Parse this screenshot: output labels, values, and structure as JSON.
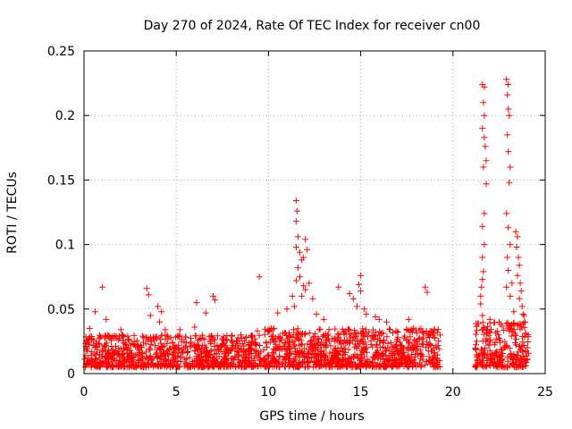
{
  "chart_data": {
    "type": "scatter",
    "title": "Day 270 of 2024, Rate Of TEC Index for receiver cn00",
    "xlabel": "GPS time / hours",
    "ylabel": "ROTI / TECUs",
    "xlim": [
      0,
      25
    ],
    "ylim": [
      0,
      0.25
    ],
    "x_ticks": [
      0,
      5,
      10,
      15,
      20,
      25
    ],
    "x_tick_labels": [
      "0",
      "5",
      "10",
      "15",
      "20",
      "25"
    ],
    "y_ticks": [
      0,
      0.05,
      0.1,
      0.15,
      0.2,
      0.25
    ],
    "y_tick_labels": [
      "0",
      "0.05",
      "0.1",
      "0.15",
      "0.2",
      "0.25"
    ],
    "grid": true,
    "marker": "+",
    "series": [
      {
        "name": "ROTI",
        "color": "#ff0000",
        "baseline_segments": [
          {
            "x_start": 0.0,
            "x_end": 9.6,
            "y_low": 0.005,
            "y_high": 0.03
          },
          {
            "x_start": 9.7,
            "x_end": 19.3,
            "y_low": 0.005,
            "y_high": 0.035
          },
          {
            "x_start": 21.2,
            "x_end": 24.1,
            "y_low": 0.005,
            "y_high": 0.04
          }
        ],
        "points": [
          [
            1.0,
            0.067
          ],
          [
            0.6,
            0.048
          ],
          [
            1.2,
            0.042
          ],
          [
            0.3,
            0.035
          ],
          [
            2.0,
            0.034
          ],
          [
            3.4,
            0.066
          ],
          [
            3.5,
            0.061
          ],
          [
            3.6,
            0.045
          ],
          [
            4.0,
            0.052
          ],
          [
            4.2,
            0.048
          ],
          [
            4.1,
            0.04
          ],
          [
            4.4,
            0.034
          ],
          [
            5.2,
            0.034
          ],
          [
            6.0,
            0.036
          ],
          [
            6.1,
            0.055
          ],
          [
            6.6,
            0.047
          ],
          [
            7.0,
            0.06
          ],
          [
            7.1,
            0.057
          ],
          [
            8.5,
            0.03
          ],
          [
            9.5,
            0.075
          ],
          [
            9.4,
            0.033
          ],
          [
            10.3,
            0.035
          ],
          [
            10.5,
            0.047
          ],
          [
            11.0,
            0.05
          ],
          [
            11.5,
            0.134
          ],
          [
            11.55,
            0.126
          ],
          [
            11.5,
            0.118
          ],
          [
            11.6,
            0.106
          ],
          [
            11.5,
            0.098
          ],
          [
            11.7,
            0.094
          ],
          [
            11.8,
            0.088
          ],
          [
            11.6,
            0.082
          ],
          [
            11.9,
            0.09
          ],
          [
            12.0,
            0.104
          ],
          [
            12.1,
            0.096
          ],
          [
            11.7,
            0.075
          ],
          [
            11.5,
            0.072
          ],
          [
            11.9,
            0.068
          ],
          [
            12.2,
            0.07
          ],
          [
            12.0,
            0.065
          ],
          [
            11.8,
            0.06
          ],
          [
            12.4,
            0.058
          ],
          [
            11.3,
            0.06
          ],
          [
            11.4,
            0.052
          ],
          [
            12.6,
            0.046
          ],
          [
            13.0,
            0.042
          ],
          [
            13.8,
            0.067
          ],
          [
            14.4,
            0.062
          ],
          [
            14.6,
            0.058
          ],
          [
            15.0,
            0.076
          ],
          [
            14.9,
            0.069
          ],
          [
            15.0,
            0.064
          ],
          [
            14.8,
            0.052
          ],
          [
            15.2,
            0.05
          ],
          [
            15.3,
            0.046
          ],
          [
            15.8,
            0.044
          ],
          [
            16.0,
            0.042
          ],
          [
            16.4,
            0.04
          ],
          [
            18.5,
            0.067
          ],
          [
            18.6,
            0.063
          ],
          [
            17.6,
            0.042
          ],
          [
            21.6,
            0.224
          ],
          [
            21.7,
            0.222
          ],
          [
            21.65,
            0.21
          ],
          [
            21.7,
            0.2
          ],
          [
            21.6,
            0.19
          ],
          [
            21.7,
            0.183
          ],
          [
            21.75,
            0.176
          ],
          [
            21.8,
            0.165
          ],
          [
            21.65,
            0.16
          ],
          [
            21.8,
            0.147
          ],
          [
            21.7,
            0.124
          ],
          [
            21.6,
            0.114
          ],
          [
            21.7,
            0.1
          ],
          [
            21.6,
            0.09
          ],
          [
            21.65,
            0.079
          ],
          [
            21.6,
            0.073
          ],
          [
            21.55,
            0.067
          ],
          [
            21.5,
            0.06
          ],
          [
            21.5,
            0.054
          ],
          [
            21.6,
            0.045
          ],
          [
            22.0,
            0.042
          ],
          [
            22.5,
            0.04
          ],
          [
            22.9,
            0.228
          ],
          [
            23.0,
            0.224
          ],
          [
            22.95,
            0.216
          ],
          [
            23.0,
            0.205
          ],
          [
            23.05,
            0.2
          ],
          [
            22.95,
            0.185
          ],
          [
            23.0,
            0.172
          ],
          [
            23.1,
            0.16
          ],
          [
            23.05,
            0.148
          ],
          [
            22.9,
            0.124
          ],
          [
            23.0,
            0.113
          ],
          [
            23.1,
            0.1
          ],
          [
            22.95,
            0.09
          ],
          [
            23.0,
            0.08
          ],
          [
            22.9,
            0.067
          ],
          [
            23.1,
            0.06
          ],
          [
            23.2,
            0.07
          ],
          [
            23.4,
            0.11
          ],
          [
            23.5,
            0.106
          ],
          [
            23.45,
            0.098
          ],
          [
            23.55,
            0.09
          ],
          [
            23.6,
            0.084
          ],
          [
            23.5,
            0.076
          ],
          [
            23.65,
            0.07
          ],
          [
            23.7,
            0.064
          ],
          [
            23.6,
            0.058
          ],
          [
            23.75,
            0.052
          ],
          [
            23.8,
            0.046
          ],
          [
            23.85,
            0.045
          ],
          [
            23.3,
            0.048
          ],
          [
            23.9,
            0.04
          ]
        ]
      }
    ]
  }
}
